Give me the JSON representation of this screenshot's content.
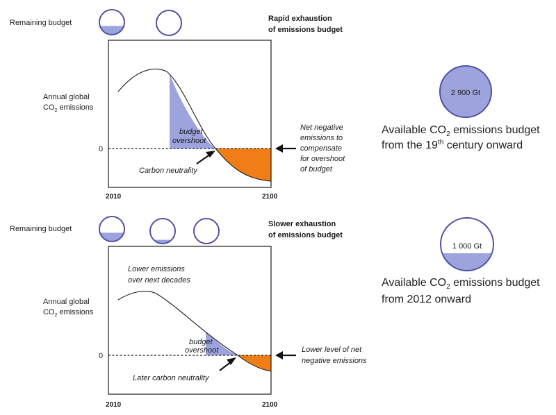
{
  "colors": {
    "budget": "#9da3dd",
    "circle_stroke": "#5250a4",
    "negative": "#f07d16"
  },
  "top": {
    "remaining_label": "Remaining budget",
    "remaining_fills": [
      0.35,
      0
    ],
    "title_line1": "Rapid exhaustion",
    "title_line2": "of emissions budget",
    "y_label_line1": "Annual global",
    "y_label_line2_pre": "CO",
    "y_label_line2_sub": "2",
    "y_label_line2_post": " emissions",
    "zero_label": "0",
    "overshoot_line1": "budget",
    "overshoot_line2": "overshoot",
    "neutrality": "Carbon neutrality",
    "x_start": "2010",
    "x_end": "2100",
    "side_lines": [
      "Net negative",
      "emissions to",
      "compensate",
      "for overshoot",
      "of budget"
    ],
    "budget_value": "2 900 Gt",
    "budget_fill": 1.0,
    "budget_text1_pre": "Available CO",
    "budget_text1_sub": "2",
    "budget_text1_post": " emissions budget",
    "budget_text2_pre": "from the 19",
    "budget_text2_sup": "th",
    "budget_text2_post": " century onward"
  },
  "bottom": {
    "remaining_label": "Remaining budget",
    "remaining_fills": [
      0.35,
      0.15,
      0
    ],
    "title_line1": "Slower exhaustion",
    "title_line2": "of emissions budget",
    "lower_line1": "Lower emissions",
    "lower_line2": "over next decades",
    "y_label_line1": "Annual global",
    "y_label_line2_pre": "CO",
    "y_label_line2_sub": "2",
    "y_label_line2_post": " emissions",
    "zero_label": "0",
    "overshoot_line1": "budget",
    "overshoot_line2": "overshoot",
    "neutrality": "Later carbon neutrality",
    "x_start": "2010",
    "x_end": "2100",
    "side_lines": [
      "Lower level of net",
      "negative emissions"
    ],
    "budget_value": "1 000 Gt",
    "budget_fill": 0.33,
    "budget_text1_pre": "Available CO",
    "budget_text1_sub": "2",
    "budget_text1_post": " emissions budget",
    "budget_text2": "from 2012 onward"
  }
}
